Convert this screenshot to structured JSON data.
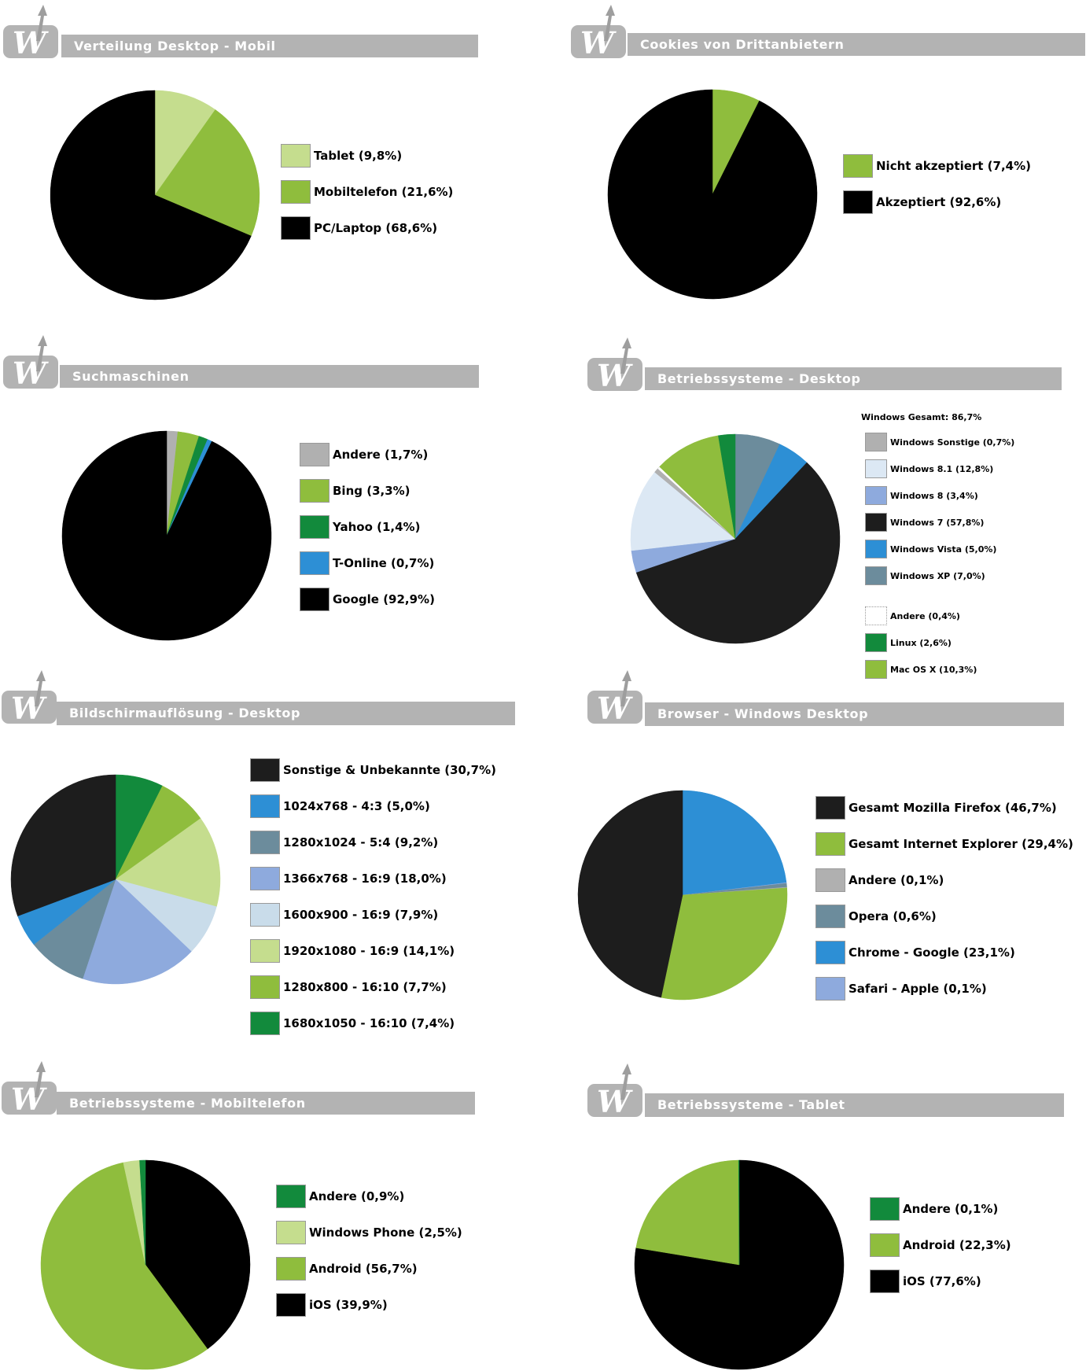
{
  "chart_data": [
    {
      "type": "pie",
      "title": "Verteilung Desktop - Mobil",
      "slices": [
        {
          "label": "Tablet (9,8%)",
          "value": 9.8,
          "color": "#c5dd8e"
        },
        {
          "label": "Mobiltelefon (21,6%)",
          "value": 21.6,
          "color": "#8fbd3d"
        },
        {
          "label": "PC/Laptop (68,6%)",
          "value": 68.6,
          "color": "#000000"
        }
      ],
      "legend_order": [
        0,
        1,
        2
      ]
    },
    {
      "type": "pie",
      "title": "Cookies von Drittanbietern",
      "slices": [
        {
          "label": "Nicht akzeptiert (7,4%)",
          "value": 7.4,
          "color": "#8fbd3d"
        },
        {
          "label": "Akzeptiert (92,6%)",
          "value": 92.6,
          "color": "#000000"
        }
      ],
      "legend_order": [
        0,
        1
      ]
    },
    {
      "type": "pie",
      "title": "Suchmaschinen",
      "slices": [
        {
          "label": "Andere (1,7%)",
          "value": 1.7,
          "color": "#b0b0b0"
        },
        {
          "label": "Bing (3,3%)",
          "value": 3.3,
          "color": "#8fbd3d"
        },
        {
          "label": "Yahoo (1,4%)",
          "value": 1.4,
          "color": "#128a3c"
        },
        {
          "label": "T-Online (0,7%)",
          "value": 0.7,
          "color": "#2d8fd5"
        },
        {
          "label": "Google (92,9%)",
          "value": 92.9,
          "color": "#000000"
        }
      ],
      "legend_order": [
        0,
        1,
        2,
        3,
        4
      ]
    },
    {
      "type": "pie",
      "title": "Betriebssysteme - Desktop",
      "note": "Windows Gesamt: 86,7%",
      "slices": [
        {
          "label": "Windows XP (7,0%)",
          "value": 7.0,
          "color": "#6c8c9c"
        },
        {
          "label": "Windows Vista (5,0%)",
          "value": 5.0,
          "color": "#2d8fd5"
        },
        {
          "label": "Windows 7 (57,8%)",
          "value": 57.8,
          "color": "#1d1d1d"
        },
        {
          "label": "Windows 8 (3,4%)",
          "value": 3.4,
          "color": "#8eaadd"
        },
        {
          "label": "Windows 8.1 (12,8%)",
          "value": 12.8,
          "color": "#dce8f4"
        },
        {
          "label": "Windows Sonstige (0,7%)",
          "value": 0.7,
          "color": "#b0b0b0"
        },
        {
          "label": "Andere (0,4%)",
          "value": 0.4,
          "color": "#ffffff"
        },
        {
          "label": "Mac OS X (10,3%)",
          "value": 10.3,
          "color": "#8fbd3d"
        },
        {
          "label": "Linux (2,6%)",
          "value": 2.6,
          "color": "#128a3c"
        }
      ],
      "legend_order": [
        5,
        4,
        3,
        2,
        1,
        0,
        6,
        8,
        7
      ]
    },
    {
      "type": "pie",
      "title": "Bildschirmauflösung - Desktop",
      "slices": [
        {
          "label": "1680x1050 - 16:10 (7,4%)",
          "value": 7.4,
          "color": "#128a3c"
        },
        {
          "label": "1280x800 - 16:10 (7,7%)",
          "value": 7.7,
          "color": "#8fbd3d"
        },
        {
          "label": "1920x1080 - 16:9 (14,1%)",
          "value": 14.1,
          "color": "#c5dd8e"
        },
        {
          "label": "1600x900 - 16:9 (7,9%)",
          "value": 7.9,
          "color": "#c9dcea"
        },
        {
          "label": "1366x768 - 16:9 (18,0%)",
          "value": 18.0,
          "color": "#8eaadd"
        },
        {
          "label": "1280x1024 - 5:4 (9,2%)",
          "value": 9.2,
          "color": "#6c8c9c"
        },
        {
          "label": "1024x768 - 4:3 (5,0%)",
          "value": 5.0,
          "color": "#2d8fd5"
        },
        {
          "label": "Sonstige & Unbekannte (30,7%)",
          "value": 30.7,
          "color": "#1d1d1d"
        }
      ],
      "legend_order": [
        7,
        6,
        5,
        4,
        3,
        2,
        1,
        0
      ]
    },
    {
      "type": "pie",
      "title": "Browser - Windows Desktop",
      "slices": [
        {
          "label": "Chrome - Google (23,1%)",
          "value": 23.1,
          "color": "#2d8fd5"
        },
        {
          "label": "Safari - Apple (0,1%)",
          "value": 0.1,
          "color": "#8eaadd"
        },
        {
          "label": "Opera (0,6%)",
          "value": 0.6,
          "color": "#6c8c9c"
        },
        {
          "label": "Andere (0,1%)",
          "value": 0.1,
          "color": "#b0b0b0"
        },
        {
          "label": "Gesamt Internet Explorer (29,4%)",
          "value": 29.4,
          "color": "#8fbd3d"
        },
        {
          "label": "Gesamt Mozilla Firefox (46,7%)",
          "value": 46.7,
          "color": "#1d1d1d"
        }
      ],
      "legend_order": [
        5,
        4,
        3,
        2,
        0,
        1
      ]
    },
    {
      "type": "pie",
      "title": "Betriebssysteme - Mobiltelefon",
      "slices": [
        {
          "label": "iOS (39,9%)",
          "value": 39.9,
          "color": "#000000"
        },
        {
          "label": "Android (56,7%)",
          "value": 56.7,
          "color": "#8fbd3d"
        },
        {
          "label": "Windows Phone (2,5%)",
          "value": 2.5,
          "color": "#c5dd8e"
        },
        {
          "label": "Andere (0,9%)",
          "value": 0.9,
          "color": "#128a3c"
        }
      ],
      "legend_order": [
        3,
        2,
        1,
        0
      ]
    },
    {
      "type": "pie",
      "title": "Betriebssysteme - Tablet",
      "slices": [
        {
          "label": "iOS (77,6%)",
          "value": 77.6,
          "color": "#000000"
        },
        {
          "label": "Android (22,3%)",
          "value": 22.3,
          "color": "#8fbd3d"
        },
        {
          "label": "Andere (0,1%)",
          "value": 0.1,
          "color": "#128a3c"
        }
      ],
      "legend_order": [
        2,
        1,
        0
      ]
    }
  ]
}
